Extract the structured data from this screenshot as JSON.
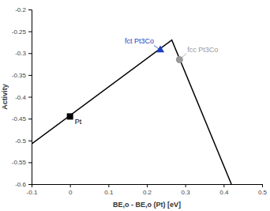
{
  "chart_data": {
    "type": "line",
    "x_label": "BE,o - BE,o (Pt) [eV]",
    "y_label": "Activity",
    "xlim": [
      -0.1,
      0.5
    ],
    "ylim": [
      -0.6,
      -0.2
    ],
    "xticks": [
      -0.1,
      0,
      0.1,
      0.2,
      0.3,
      0.4,
      0.5
    ],
    "yticks": [
      -0.6,
      -0.55,
      -0.5,
      -0.45,
      -0.4,
      -0.35,
      -0.3,
      -0.25,
      -0.2
    ],
    "series": [
      {
        "type": "line",
        "color": "#000000",
        "x": [
          -0.1,
          0.265,
          0.42
        ],
        "values": [
          -0.508,
          -0.27,
          -0.6
        ]
      },
      {
        "type": "scatter",
        "name": "Pt",
        "color": "#000000",
        "marker": "square",
        "x": [
          0
        ],
        "values": [
          -0.445
        ]
      },
      {
        "type": "scatter",
        "name": "fct Pt3Co",
        "color": "#1f3fbf",
        "marker": "triangle",
        "x": [
          0.235
        ],
        "values": [
          -0.293
        ]
      },
      {
        "type": "scatter",
        "name": "fcc Pt3Co",
        "color": "#999999",
        "marker": "circle",
        "x": [
          0.285
        ],
        "values": [
          -0.315
        ]
      }
    ]
  }
}
